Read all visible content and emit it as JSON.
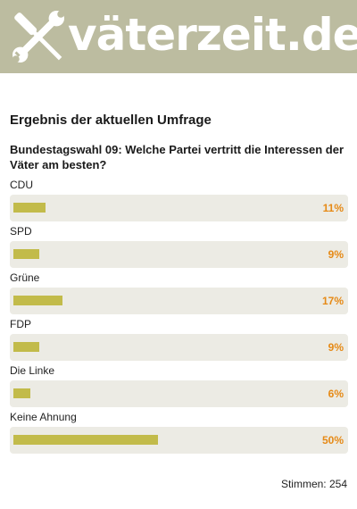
{
  "site": {
    "logo_text": "väterzeit.de",
    "logo_icon": "wrench-screwdriver-cross-icon",
    "header_color": "#bcbca0"
  },
  "poll": {
    "heading": "Ergebnis der aktuellen Umfrage",
    "question": "Bundestagswahl 09: Welche Partei vertritt die Interessen der Väter am besten?",
    "options": [
      {
        "label": "CDU",
        "percent_text": "11%",
        "percent": 11
      },
      {
        "label": "SPD",
        "percent_text": "9%",
        "percent": 9
      },
      {
        "label": "Grüne",
        "percent_text": "17%",
        "percent": 17
      },
      {
        "label": "FDP",
        "percent_text": "9%",
        "percent": 9
      },
      {
        "label": "Die Linke",
        "percent_text": "6%",
        "percent": 6
      },
      {
        "label": "Keine Ahnung",
        "percent_text": "50%",
        "percent": 50
      }
    ],
    "votes_text": "Stimmen: 254"
  },
  "colors": {
    "bar": "#c2bb4a",
    "percent_text": "#e68a16",
    "track": "#ecebe4"
  }
}
